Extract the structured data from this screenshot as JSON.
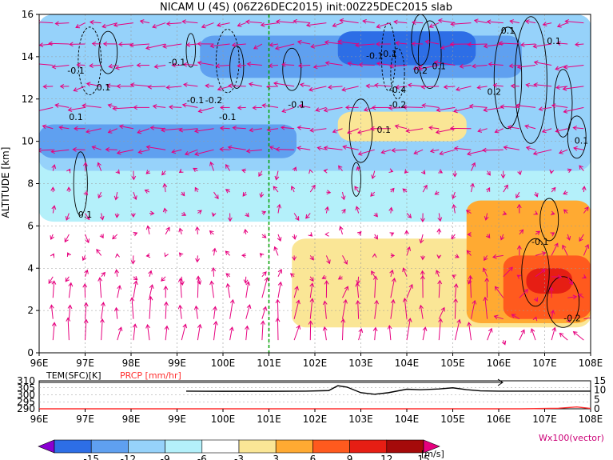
{
  "title": "NICAM U (4S) (06Z26DEC2015) init:00Z25DEC2015 slab",
  "chart_data": [
    {
      "type": "heatmap",
      "ylabel": "ALTITUDE [km]",
      "xlim": [
        96,
        108
      ],
      "ylim": [
        0,
        16
      ],
      "x_ticks": [
        "96E",
        "97E",
        "98E",
        "99E",
        "100E",
        "101E",
        "102E",
        "103E",
        "104E",
        "105E",
        "106E",
        "107E",
        "108E"
      ],
      "y_ticks": [
        "0",
        "2",
        "4",
        "6",
        "8",
        "10",
        "12",
        "14",
        "16"
      ],
      "grid": true,
      "marker_line_lon": 101,
      "shaded_regions": [
        {
          "level": -3,
          "color": "#b4f0fa",
          "x0": 96,
          "x1": 108,
          "y0": 6.2,
          "y1": 16
        },
        {
          "level": -6,
          "color": "#96d2fa",
          "x0": 96,
          "x1": 108,
          "y0": 8.6,
          "y1": 16
        },
        {
          "level": -9,
          "color": "#5fa0f0",
          "x0": 96,
          "x1": 101.6,
          "y0": 9.2,
          "y1": 10.8
        },
        {
          "level": -9,
          "color": "#5fa0f0",
          "x0": 99.5,
          "x1": 106.5,
          "y0": 13.0,
          "y1": 15.0
        },
        {
          "level": -12,
          "color": "#2d6ee6",
          "x0": 102.5,
          "x1": 105.5,
          "y0": 13.6,
          "y1": 15.2
        },
        {
          "level": 3,
          "color": "#fae696",
          "x0": 101.5,
          "x1": 108,
          "y0": 1.2,
          "y1": 5.4
        },
        {
          "level": 3,
          "color": "#fae696",
          "x0": 102.5,
          "x1": 105.3,
          "y0": 10.0,
          "y1": 11.4
        },
        {
          "level": 6,
          "color": "#ffaa32",
          "x0": 105.3,
          "x1": 108,
          "y0": 1.4,
          "y1": 7.2
        },
        {
          "level": 9,
          "color": "#ff5a1e",
          "x0": 106.1,
          "x1": 108,
          "y0": 1.6,
          "y1": 4.6
        },
        {
          "level": 12,
          "color": "#e61e14",
          "x0": 106.6,
          "x1": 107.6,
          "y0": 2.8,
          "y1": 4.0
        }
      ],
      "contour_labels": [
        "-0.1",
        "0.1",
        "-0.1",
        "0.1",
        "-0.1",
        "-0.2",
        "-0.1",
        "-0.1",
        "-0.1",
        "-0.4",
        "-0.2",
        "0.2",
        "0.1",
        "0.2",
        "0.1",
        "0.1",
        "0.1",
        "-0.1",
        "0.1",
        "-0.2",
        "-0.1",
        "0.1"
      ],
      "vector_units": "Wx100(vector)"
    },
    {
      "type": "line",
      "x_ticks": [
        "96E",
        "97E",
        "98E",
        "99E",
        "100E",
        "101E",
        "102E",
        "103E",
        "104E",
        "105E",
        "106E",
        "107E",
        "108E"
      ],
      "left_axis_label": "TEM(SFC)[K]",
      "right_axis_label": "PRCP [mm/hr]",
      "left_ticks": [
        "310",
        "305",
        "300",
        "295",
        "290"
      ],
      "right_ticks": [
        "15",
        "10",
        "5",
        "0"
      ],
      "series": [
        {
          "name": "TEM(SFC)[K]",
          "color": "#000000",
          "x": [
            99.2,
            100,
            101,
            101.8,
            102.3,
            102.5,
            102.7,
            103,
            103.3,
            103.6,
            104,
            104.3,
            104.7,
            105,
            105.3,
            105.6,
            106,
            106.5,
            108
          ],
          "y": [
            302.6,
            302.5,
            302.5,
            302.6,
            303.0,
            306.5,
            305.5,
            301.5,
            300.4,
            301.5,
            304.0,
            303.6,
            304.2,
            305.0,
            303.7,
            302.8,
            302.6,
            302.6,
            302.6
          ]
        },
        {
          "name": "PRCP [mm/hr]",
          "color": "#ff3030",
          "x": [
            96,
            106.5,
            107.3,
            107.7,
            108
          ],
          "y": [
            0,
            0,
            0.3,
            1.0,
            0.2
          ]
        }
      ]
    }
  ],
  "colorbar": {
    "ticks": [
      "-15",
      "-12",
      "-9",
      "-6",
      "-3",
      "3",
      "6",
      "9",
      "12",
      "15"
    ],
    "units": "[m/s]",
    "colors": [
      "#8a00d2",
      "#2d6ee6",
      "#5fa0f0",
      "#96d2fa",
      "#b4f0fa",
      "#ffffff",
      "#fae696",
      "#ffaa32",
      "#ff5a1e",
      "#e61e14",
      "#a50a0a",
      "#e6007e"
    ]
  }
}
